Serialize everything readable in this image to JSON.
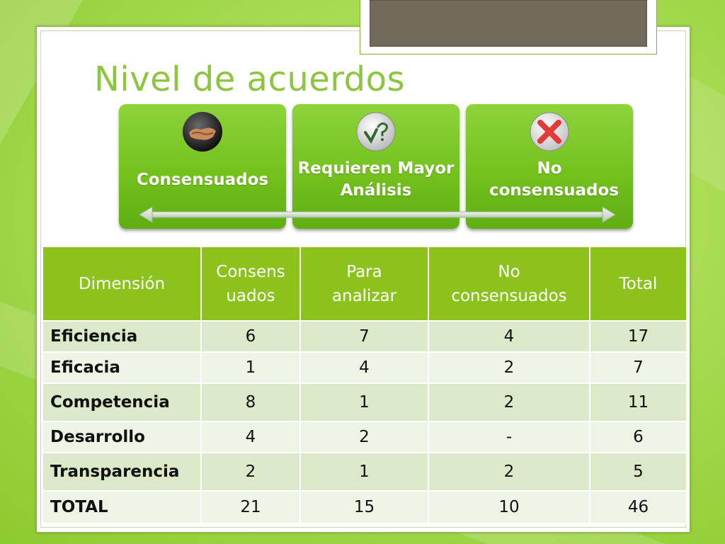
{
  "title": "Nivel de acuerdos",
  "categories": [
    {
      "label": "Consensuados",
      "icon": "handshake-icon"
    },
    {
      "label": "Requieren Mayor Análisis",
      "icon": "check-question-icon"
    },
    {
      "label": "No consensuados",
      "icon": "red-x-icon"
    }
  ],
  "table": {
    "headers": [
      "Dimensión",
      "Consensuados",
      "Para analizar",
      "No consensuados",
      "Total"
    ],
    "header_lines": [
      [
        "Dimensión"
      ],
      [
        "Consens",
        "uados"
      ],
      [
        "Para",
        "analizar"
      ],
      [
        "No",
        "consensuados"
      ],
      [
        "Total"
      ]
    ],
    "rows": [
      [
        "Eficiencia",
        "6",
        "7",
        "4",
        "17"
      ],
      [
        "Eficacia",
        "1",
        "4",
        "2",
        "7"
      ],
      [
        "Competencia",
        "8",
        "1",
        "2",
        "11"
      ],
      [
        "Desarrollo",
        "4",
        "2",
        "-",
        "6"
      ],
      [
        "Transparencia",
        "2",
        "1",
        "2",
        "5"
      ],
      [
        "TOTAL",
        "21",
        "15",
        "10",
        "46"
      ]
    ]
  },
  "colors": {
    "accent": "#8cc63f",
    "header_bg": "#8cc21c",
    "row_odd": "#dbe9c9",
    "row_even": "#eef4e5"
  }
}
